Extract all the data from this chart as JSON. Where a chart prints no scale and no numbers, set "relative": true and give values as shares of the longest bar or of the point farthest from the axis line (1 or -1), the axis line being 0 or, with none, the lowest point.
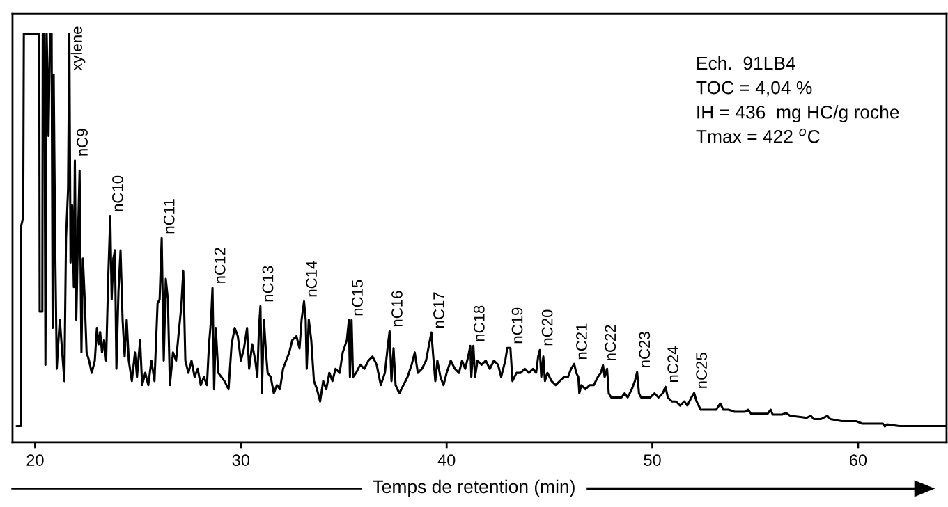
{
  "chart_data": {
    "type": "line",
    "relative": true,
    "xlabel": "Temps de retention (min)",
    "xlim": [
      18.9,
      64.3
    ],
    "xticks": [
      20,
      30,
      40,
      50,
      60
    ],
    "series": [
      {
        "color": "#000000",
        "x": [
          19.1,
          19.3,
          19.32,
          19.42,
          19.45,
          20.2,
          20.22,
          20.35,
          20.37,
          20.45,
          20.5,
          20.56,
          20.65,
          20.72,
          20.8,
          20.85,
          20.9,
          20.97,
          21.05,
          21.12,
          21.2,
          21.3,
          21.42,
          21.5,
          21.6,
          21.66,
          21.72,
          21.8,
          21.88,
          21.93,
          22.0,
          22.08,
          22.16,
          22.25,
          22.32,
          22.4,
          22.5,
          22.62,
          22.75,
          22.9,
          23.0,
          23.08,
          23.16,
          23.25,
          23.35,
          23.45,
          23.55,
          23.65,
          23.72,
          23.8,
          23.88,
          23.95,
          24.05,
          24.15,
          24.25,
          24.35,
          24.45,
          24.55,
          24.7,
          24.85,
          24.95,
          25.1,
          25.2,
          25.35,
          25.5,
          25.65,
          25.8,
          25.95,
          26.05,
          26.15,
          26.25,
          26.35,
          26.45,
          26.55,
          26.7,
          26.85,
          27.0,
          27.1,
          27.2,
          27.3,
          27.45,
          27.6,
          27.75,
          27.9,
          28.05,
          28.2,
          28.35,
          28.45,
          28.55,
          28.62,
          28.7,
          28.78,
          28.9,
          29.05,
          29.2,
          29.4,
          29.55,
          29.7,
          29.85,
          30.0,
          30.15,
          30.3,
          30.4,
          30.55,
          30.7,
          30.8,
          30.88,
          30.95,
          31.02,
          31.12,
          31.22,
          31.3,
          31.45,
          31.6,
          31.75,
          31.9,
          32.05,
          32.2,
          32.35,
          32.5,
          32.7,
          32.85,
          32.95,
          33.07,
          33.15,
          33.2,
          33.3,
          33.42,
          33.55,
          33.7,
          33.85,
          34.0,
          34.15,
          34.3,
          34.45,
          34.6,
          34.8,
          34.95,
          35.15,
          35.25,
          35.3,
          35.38,
          35.45,
          35.6,
          35.8,
          36.0,
          36.2,
          36.4,
          36.6,
          36.8,
          37.0,
          37.15,
          37.23,
          37.32,
          37.42,
          37.52,
          37.7,
          37.9,
          38.1,
          38.3,
          38.45,
          38.6,
          38.8,
          39.0,
          39.15,
          39.26,
          39.35,
          39.45,
          39.55,
          39.7,
          39.85,
          40.0,
          40.2,
          40.4,
          40.6,
          40.75,
          40.9,
          41.05,
          41.15,
          41.2,
          41.3,
          41.38,
          41.5,
          41.7,
          41.9,
          42.1,
          42.3,
          42.5,
          42.65,
          42.85,
          42.95,
          43.1,
          43.2,
          43.4,
          43.6,
          43.8,
          44.0,
          44.2,
          44.35,
          44.45,
          44.53,
          44.6,
          44.7,
          44.78,
          44.9,
          45.1,
          45.3,
          45.5,
          45.7,
          45.9,
          46.05,
          46.2,
          46.3,
          46.4,
          46.45,
          46.55,
          46.75,
          46.95,
          47.15,
          47.35,
          47.5,
          47.6,
          47.68,
          47.8,
          47.88,
          48.0,
          48.3,
          48.5,
          48.65,
          48.8,
          49.0,
          49.15,
          49.26,
          49.35,
          49.45,
          49.7,
          49.9,
          50.1,
          50.3,
          50.5,
          50.64,
          50.75,
          50.95,
          51.15,
          51.35,
          51.55,
          51.7,
          51.9,
          52.03,
          52.15,
          52.35,
          52.8,
          53.1,
          53.3,
          53.45,
          53.7,
          54.0,
          54.5,
          54.65,
          54.8,
          55.2,
          55.6,
          55.75,
          55.85,
          56.3,
          56.5,
          56.7,
          57.2,
          57.5,
          57.7,
          57.85,
          58.2,
          58.5,
          58.65,
          59.2,
          59.9,
          60.2,
          61.2,
          61.3,
          61.4,
          62.0,
          64.3
        ],
        "values": [
          0.04,
          0.04,
          0.53,
          0.55,
          1.0,
          1.0,
          0.32,
          0.32,
          1.0,
          1.0,
          0.19,
          1.0,
          0.75,
          1.0,
          1.0,
          0.28,
          0.9,
          0.5,
          0.18,
          0.24,
          0.3,
          0.23,
          0.15,
          0.5,
          0.62,
          1.0,
          0.44,
          0.58,
          0.38,
          0.69,
          0.3,
          0.5,
          0.665,
          0.22,
          0.45,
          0.36,
          0.22,
          0.2,
          0.17,
          0.2,
          0.28,
          0.24,
          0.27,
          0.22,
          0.25,
          0.2,
          0.4,
          0.554,
          0.35,
          0.45,
          0.47,
          0.18,
          0.37,
          0.47,
          0.3,
          0.21,
          0.3,
          0.2,
          0.15,
          0.22,
          0.16,
          0.25,
          0.14,
          0.17,
          0.14,
          0.2,
          0.15,
          0.34,
          0.35,
          0.5,
          0.2,
          0.4,
          0.35,
          0.14,
          0.22,
          0.2,
          0.28,
          0.33,
          0.42,
          0.2,
          0.17,
          0.2,
          0.16,
          0.18,
          0.14,
          0.16,
          0.14,
          0.24,
          0.3,
          0.378,
          0.13,
          0.28,
          0.17,
          0.16,
          0.15,
          0.13,
          0.24,
          0.28,
          0.26,
          0.2,
          0.23,
          0.28,
          0.18,
          0.24,
          0.2,
          0.16,
          0.28,
          0.333,
          0.12,
          0.3,
          0.22,
          0.17,
          0.16,
          0.12,
          0.14,
          0.13,
          0.18,
          0.2,
          0.22,
          0.25,
          0.26,
          0.23,
          0.3,
          0.345,
          0.3,
          0.18,
          0.3,
          0.25,
          0.15,
          0.13,
          0.1,
          0.15,
          0.13,
          0.17,
          0.15,
          0.18,
          0.17,
          0.22,
          0.25,
          0.299,
          0.16,
          0.299,
          0.16,
          0.17,
          0.19,
          0.18,
          0.2,
          0.21,
          0.19,
          0.14,
          0.17,
          0.24,
          0.272,
          0.15,
          0.23,
          0.14,
          0.12,
          0.14,
          0.16,
          0.19,
          0.22,
          0.17,
          0.18,
          0.2,
          0.24,
          0.269,
          0.21,
          0.15,
          0.2,
          0.16,
          0.14,
          0.17,
          0.2,
          0.18,
          0.17,
          0.2,
          0.18,
          0.21,
          0.236,
          0.16,
          0.236,
          0.16,
          0.2,
          0.19,
          0.2,
          0.18,
          0.2,
          0.19,
          0.16,
          0.2,
          0.231,
          0.231,
          0.15,
          0.17,
          0.17,
          0.18,
          0.17,
          0.18,
          0.17,
          0.21,
          0.226,
          0.16,
          0.21,
          0.15,
          0.17,
          0.15,
          0.14,
          0.15,
          0.16,
          0.16,
          0.18,
          0.192,
          0.17,
          0.16,
          0.12,
          0.14,
          0.13,
          0.14,
          0.14,
          0.16,
          0.17,
          0.189,
          0.16,
          0.18,
          0.12,
          0.11,
          0.11,
          0.11,
          0.12,
          0.11,
          0.13,
          0.15,
          0.172,
          0.12,
          0.11,
          0.11,
          0.11,
          0.12,
          0.11,
          0.12,
          0.136,
          0.11,
          0.1,
          0.1,
          0.09,
          0.1,
          0.09,
          0.11,
          0.121,
          0.1,
          0.08,
          0.08,
          0.08,
          0.095,
          0.08,
          0.08,
          0.075,
          0.075,
          0.08,
          0.07,
          0.07,
          0.07,
          0.08,
          0.068,
          0.068,
          0.072,
          0.065,
          0.062,
          0.06,
          0.065,
          0.057,
          0.057,
          0.065,
          0.057,
          0.052,
          0.052,
          0.046,
          0.046,
          0.039,
          0.044,
          0.04,
          0.04
        ]
      }
    ],
    "annotations": [
      {
        "text": "xylene",
        "x": 21.66,
        "y": 0.9
      },
      {
        "text": "nC9",
        "x": 21.93,
        "y": 0.69
      },
      {
        "text": "nC10",
        "x": 23.65,
        "y": 0.554
      },
      {
        "text": "nC11",
        "x": 26.15,
        "y": 0.5
      },
      {
        "text": "nC12",
        "x": 28.62,
        "y": 0.378
      },
      {
        "text": "nC13",
        "x": 30.95,
        "y": 0.333
      },
      {
        "text": "nC14",
        "x": 33.07,
        "y": 0.345
      },
      {
        "text": "nC15",
        "x": 35.3,
        "y": 0.299
      },
      {
        "text": "nC16",
        "x": 37.23,
        "y": 0.272
      },
      {
        "text": "nC17",
        "x": 39.26,
        "y": 0.269
      },
      {
        "text": "nC18",
        "x": 41.22,
        "y": 0.236
      },
      {
        "text": "nC19",
        "x": 43.07,
        "y": 0.231
      },
      {
        "text": "nC20",
        "x": 44.53,
        "y": 0.226
      },
      {
        "text": "nC21",
        "x": 46.2,
        "y": 0.192
      },
      {
        "text": "nC22",
        "x": 47.6,
        "y": 0.189
      },
      {
        "text": "nC23",
        "x": 49.26,
        "y": 0.172
      },
      {
        "text": "nC24",
        "x": 50.64,
        "y": 0.136
      },
      {
        "text": "nC25",
        "x": 52.03,
        "y": 0.121
      },
      "Ech.  91LB4",
      "TOC = 4,04 %",
      "IH = 436  mg HC/g roche",
      "Tmax = 422 $^{o}$C"
    ]
  }
}
